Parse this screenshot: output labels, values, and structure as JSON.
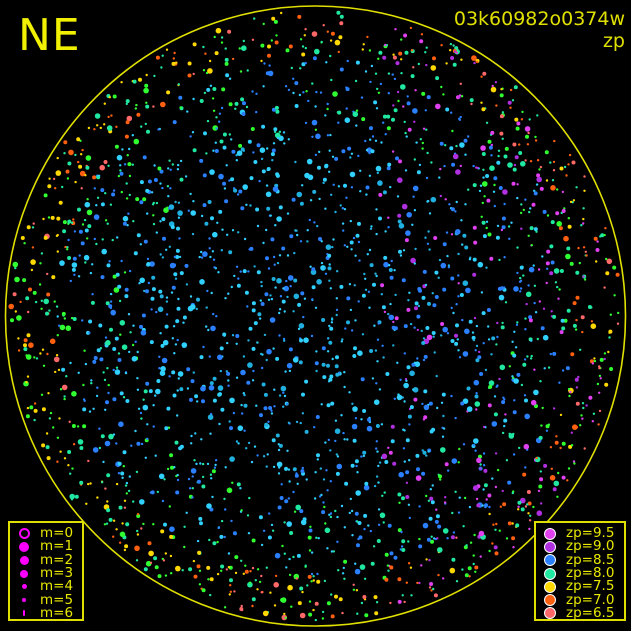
{
  "header": {
    "direction": "NE",
    "image_id": "03k60982o0374w",
    "mode": "zp"
  },
  "horizon_color": "#e0e000",
  "magnitude_legend": [
    {
      "label": "m=0",
      "hollow": true
    },
    {
      "label": "m=1"
    },
    {
      "label": "m=2"
    },
    {
      "label": "m=3"
    },
    {
      "label": "m=4"
    },
    {
      "label": "m=5"
    },
    {
      "label": "m=6"
    }
  ],
  "zp_legend": [
    {
      "label": "zp=9.5",
      "color": "#e040f0"
    },
    {
      "label": "zp=9.0",
      "color": "#b030e0"
    },
    {
      "label": "zp=8.5",
      "color": "#2a80ff"
    },
    {
      "label": "zp=8.0",
      "color": "#20e8a0"
    },
    {
      "label": "zp=7.5",
      "color": "#ffd800"
    },
    {
      "label": "zp=7.0",
      "color": "#ff6010"
    },
    {
      "label": "zp=6.5",
      "color": "#ff6868"
    }
  ]
}
